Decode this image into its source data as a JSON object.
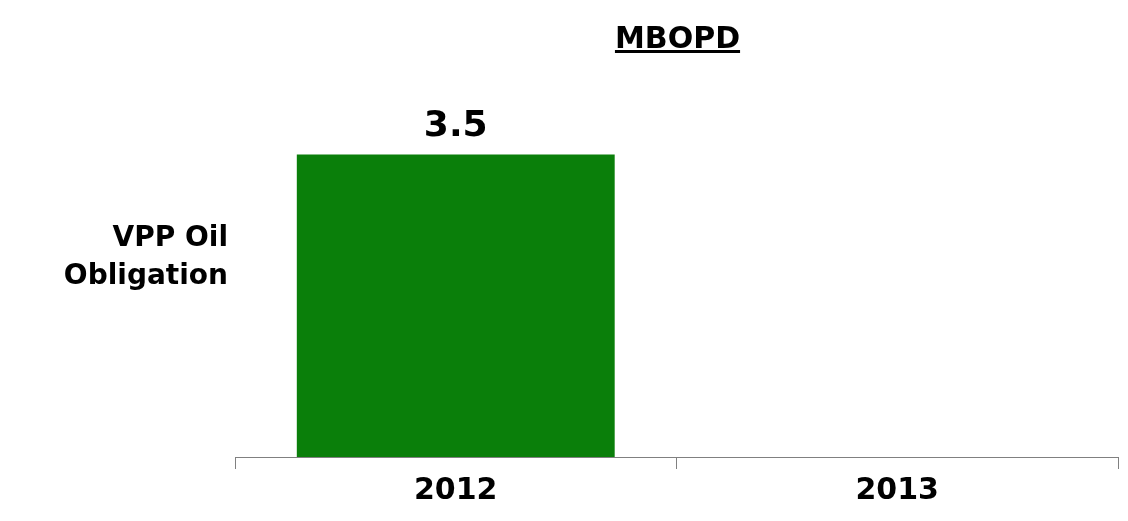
{
  "chart_data": {
    "type": "bar",
    "title": "MBOPD",
    "ylabel": "VPP Oil Obligation",
    "categories": [
      "2012",
      "2013"
    ],
    "values": [
      3.5,
      null
    ],
    "color": "#0a7f0a",
    "data_labels": true,
    "grid": false,
    "legend": false
  }
}
